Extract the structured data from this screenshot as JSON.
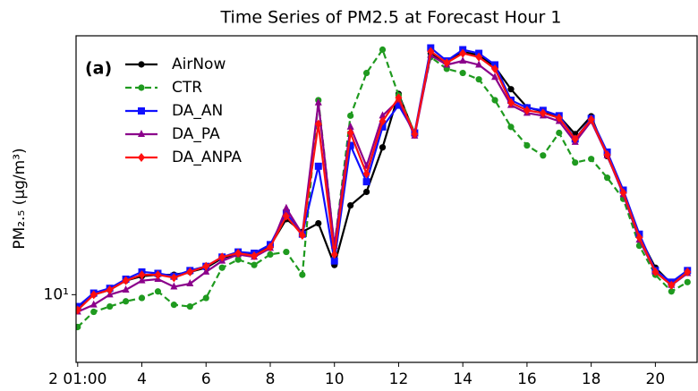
{
  "chart_data": {
    "type": "line",
    "title": "Time Series of PM2.5 at Forecast Hour 1",
    "y_label": "PM₂.₅ (μg/m³)",
    "annotation": "(a)",
    "log_y": true,
    "grid": false,
    "legend": "upper left",
    "x": [
      2,
      2.5,
      3,
      3.5,
      4,
      4.5,
      5,
      5.5,
      6,
      6.5,
      7,
      7.5,
      8,
      8.5,
      9,
      9.5,
      10,
      10.5,
      11,
      11.5,
      12,
      12.5,
      13,
      13.5,
      14,
      14.5,
      15,
      15.5,
      16,
      16.5,
      17,
      17.5,
      18,
      18.5,
      19,
      19.5,
      20,
      20.5,
      21
    ],
    "xlim": [
      1.95,
      21.3
    ],
    "xticks": [
      {
        "value": 2,
        "label": "2 01:00"
      },
      4,
      6,
      8,
      10,
      12,
      14,
      16,
      18,
      20
    ],
    "ylim": [
      6.6,
      49
    ],
    "yticks": [
      {
        "value": 10,
        "label": "10¹"
      }
    ],
    "series": [
      {
        "name": "AirNow",
        "color": "#000000",
        "marker": "circle",
        "linestyle": "solid",
        "values": [
          9.2,
          10.0,
          10.3,
          10.9,
          11.2,
          11.3,
          11.3,
          11.5,
          11.8,
          12.5,
          12.9,
          12.8,
          13.5,
          15.9,
          14.7,
          15.5,
          12.0,
          17.3,
          18.8,
          24.7,
          34.3,
          26.8,
          44.0,
          41.6,
          44.4,
          43.5,
          40.5,
          35.3,
          31.6,
          30.8,
          29.9,
          26.8,
          29.9,
          23.4,
          18.8,
          14.3,
          11.8,
          10.7,
          11.5
        ]
      },
      {
        "name": "CTR",
        "color": "#1f9a1f",
        "marker": "circle",
        "linestyle": "dashed",
        "values": [
          8.2,
          9.0,
          9.3,
          9.6,
          9.8,
          10.2,
          9.4,
          9.3,
          9.8,
          11.8,
          12.4,
          12.0,
          12.8,
          13.0,
          11.3,
          33.0,
          13.5,
          30.0,
          39.0,
          45.0,
          34.0,
          27.0,
          43.0,
          40.0,
          39.0,
          37.5,
          33.0,
          28.0,
          25.0,
          23.5,
          27.0,
          22.5,
          23.0,
          20.5,
          18.0,
          13.5,
          11.3,
          10.2,
          10.8
        ]
      },
      {
        "name": "DA_AN",
        "color": "#1010ff",
        "marker": "square",
        "linestyle": "solid",
        "values": [
          9.3,
          10.1,
          10.4,
          11.0,
          11.5,
          11.4,
          11.2,
          11.6,
          11.9,
          12.6,
          13.0,
          12.9,
          13.6,
          16.5,
          14.5,
          22.0,
          12.3,
          25.0,
          20.0,
          28.0,
          32.0,
          27.0,
          45.5,
          42.0,
          45.0,
          44.0,
          41.0,
          33.0,
          31.5,
          31.0,
          30.0,
          26.0,
          29.5,
          24.0,
          19.0,
          14.5,
          11.6,
          10.8,
          11.6
        ]
      },
      {
        "name": "DA_PA",
        "color": "#8b008b",
        "marker": "triangle",
        "linestyle": "solid",
        "values": [
          9.0,
          9.4,
          10.0,
          10.3,
          10.9,
          11.0,
          10.5,
          10.7,
          11.5,
          12.3,
          12.8,
          12.6,
          13.3,
          17.0,
          14.5,
          32.5,
          13.5,
          28.0,
          22.0,
          30.0,
          33.0,
          26.5,
          43.5,
          41.0,
          42.0,
          41.0,
          38.0,
          32.0,
          30.5,
          30.0,
          29.0,
          25.5,
          29.0,
          23.5,
          18.5,
          14.0,
          11.5,
          10.6,
          11.4
        ]
      },
      {
        "name": "DA_ANPA",
        "color": "#ff1010",
        "marker": "diamond",
        "linestyle": "solid",
        "values": [
          9.1,
          10.0,
          10.3,
          10.9,
          11.3,
          11.3,
          11.1,
          11.5,
          11.9,
          12.6,
          12.9,
          12.7,
          13.4,
          16.2,
          14.4,
          28.5,
          12.8,
          27.0,
          21.0,
          29.0,
          33.5,
          26.8,
          44.5,
          41.5,
          44.0,
          43.0,
          40.0,
          32.5,
          31.0,
          30.5,
          29.6,
          26.0,
          29.3,
          23.6,
          18.7,
          14.2,
          11.5,
          10.6,
          11.5
        ]
      }
    ]
  }
}
